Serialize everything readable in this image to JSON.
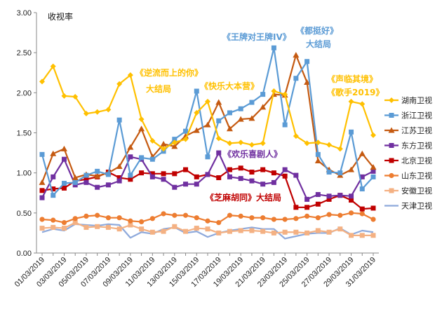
{
  "chart_data": {
    "type": "line",
    "title": "",
    "ylabel": "收视率",
    "xlabel": "",
    "ylim": [
      0,
      3
    ],
    "yticks": [
      "0.00",
      "0.50",
      "1.00",
      "1.50",
      "2.00",
      "2.50",
      "3.00"
    ],
    "categories": [
      "01/03/2019",
      "02/03/2019",
      "03/03/2019",
      "04/03/2019",
      "05/03/2019",
      "06/03/2019",
      "07/03/2019",
      "08/03/2019",
      "09/03/2019",
      "10/03/2019",
      "11/03/2019",
      "12/03/2019",
      "13/03/2019",
      "14/03/2019",
      "15/03/2019",
      "16/03/2019",
      "17/03/2019",
      "18/03/2019",
      "19/03/2019",
      "20/03/2019",
      "21/03/2019",
      "22/03/2019",
      "23/03/2019",
      "24/03/2019",
      "25/03/2019",
      "26/03/2019",
      "27/03/2019",
      "28/03/2019",
      "29/03/2019",
      "30/03/2019",
      "31/03/2019"
    ],
    "xtick_labels": [
      "01/03/2019",
      "03/03/2019",
      "05/03/2019",
      "07/03/2019",
      "09/03/2019",
      "11/03/2019",
      "13/03/2019",
      "15/03/2019",
      "17/03/2019",
      "19/03/2019",
      "21/03/2019",
      "23/03/2019",
      "25/03/2019",
      "27/03/2019",
      "29/03/2019",
      "31/03/2019"
    ],
    "series": [
      {
        "name": "湖南卫视",
        "color": "#FFC000",
        "marker": "diamond",
        "values": [
          2.14,
          2.33,
          1.96,
          1.95,
          1.74,
          1.76,
          1.79,
          2.11,
          2.22,
          1.67,
          1.4,
          1.3,
          1.38,
          1.42,
          1.75,
          1.89,
          1.43,
          1.37,
          1.38,
          1.35,
          1.37,
          2.02,
          1.98,
          1.46,
          1.37,
          1.38,
          1.35,
          1.3,
          1.89,
          1.86,
          1.47
        ]
      },
      {
        "name": "浙江卫视",
        "color": "#5B9BD5",
        "marker": "square",
        "values": [
          1.23,
          0.72,
          0.87,
          0.88,
          0.97,
          1.02,
          0.98,
          1.66,
          0.97,
          1.19,
          1.17,
          1.27,
          1.42,
          1.52,
          2.02,
          1.2,
          1.65,
          1.75,
          1.8,
          1.88,
          1.98,
          2.56,
          1.6,
          2.18,
          2.39,
          1.23,
          1.01,
          1.0,
          1.51,
          0.8,
          0.95
        ]
      },
      {
        "name": "江苏卫视",
        "color": "#C55A11",
        "marker": "triangle",
        "values": [
          0.88,
          1.24,
          1.3,
          0.94,
          0.98,
          0.96,
          1.0,
          1.08,
          1.32,
          1.55,
          1.2,
          1.36,
          1.33,
          1.46,
          1.53,
          1.6,
          1.88,
          1.55,
          1.67,
          1.68,
          1.82,
          1.98,
          1.97,
          2.47,
          2.13,
          1.15,
          1.04,
          0.97,
          1.04,
          1.24,
          1.07
        ]
      },
      {
        "name": "东方卫视",
        "color": "#7030A0",
        "marker": "square",
        "values": [
          0.69,
          0.95,
          1.17,
          0.85,
          0.88,
          0.82,
          0.85,
          0.9,
          1.2,
          1.17,
          0.95,
          0.92,
          0.82,
          0.86,
          0.86,
          0.98,
          1.25,
          0.95,
          0.93,
          0.9,
          0.86,
          0.88,
          1.04,
          0.97,
          0.67,
          0.73,
          0.71,
          0.72,
          0.71,
          0.95,
          1.02
        ]
      },
      {
        "name": "北京卫视",
        "color": "#C00000",
        "marker": "square",
        "values": [
          0.78,
          0.8,
          0.81,
          0.9,
          0.92,
          0.95,
          1.01,
          0.94,
          0.92,
          1.0,
          0.99,
          0.99,
          0.99,
          1.04,
          0.95,
          0.98,
          0.94,
          1.04,
          1.06,
          1.01,
          1.04,
          1.0,
          0.96,
          0.57,
          0.57,
          0.61,
          0.67,
          0.72,
          0.66,
          0.55,
          0.56
        ]
      },
      {
        "name": "山东卫视",
        "color": "#ED7D31",
        "marker": "circle",
        "values": [
          0.42,
          0.41,
          0.38,
          0.43,
          0.46,
          0.47,
          0.44,
          0.44,
          0.4,
          0.39,
          0.43,
          0.49,
          0.47,
          0.47,
          0.44,
          0.4,
          0.38,
          0.47,
          0.46,
          0.44,
          0.44,
          0.42,
          0.42,
          0.43,
          0.46,
          0.44,
          0.48,
          0.47,
          0.5,
          0.49,
          0.42
        ]
      },
      {
        "name": "安徽卫视",
        "color": "#F4B183",
        "marker": "square",
        "values": [
          0.31,
          0.32,
          0.31,
          0.38,
          0.32,
          0.33,
          0.32,
          0.3,
          0.35,
          0.3,
          0.26,
          0.27,
          0.33,
          0.27,
          0.31,
          0.3,
          0.25,
          0.27,
          0.28,
          0.28,
          0.27,
          0.25,
          0.26,
          0.26,
          0.25,
          0.28,
          0.26,
          0.3,
          0.22,
          0.22,
          0.22
        ]
      },
      {
        "name": "天津卫视",
        "color": "#8EA9DB",
        "marker": "none",
        "values": [
          0.26,
          0.3,
          0.28,
          0.36,
          0.35,
          0.34,
          0.36,
          0.35,
          0.19,
          0.26,
          0.24,
          0.3,
          0.32,
          0.25,
          0.27,
          0.2,
          0.25,
          0.28,
          0.3,
          0.32,
          0.3,
          0.3,
          0.18,
          0.21,
          0.24,
          0.25,
          0.25,
          0.31,
          0.23,
          0.28,
          0.26
        ]
      }
    ],
    "annotations": [
      {
        "text": "《逆流而上的你》",
        "color": "#FFC000"
      },
      {
        "text": "大结局",
        "color": "#FFC000"
      },
      {
        "text": "《快乐大本营》",
        "color": "#FFC000"
      },
      {
        "text": "《王牌对王牌IV》",
        "color": "#5B9BD5"
      },
      {
        "text": "《都挺好》",
        "color": "#5B9BD5"
      },
      {
        "text": "大结局",
        "color": "#5B9BD5"
      },
      {
        "text": "《欢乐喜剧人》",
        "color": "#7030A0"
      },
      {
        "text": "《芝麻胡同》大结局",
        "color": "#C00000"
      },
      {
        "text": "《声临其境》",
        "color": "#FFC000"
      },
      {
        "text": "《歌手2019》",
        "color": "#FFC000"
      }
    ]
  }
}
